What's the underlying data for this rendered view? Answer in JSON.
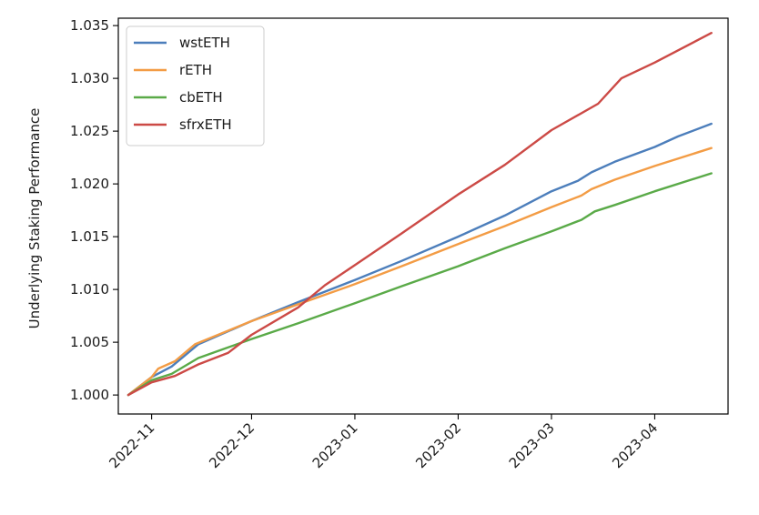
{
  "chart_data": {
    "type": "line",
    "title": "",
    "xlabel": "",
    "ylabel": "Underlying Staking Performance",
    "xlim": [
      "2022-10-22",
      "2023-04-23"
    ],
    "ylim": [
      0.9982,
      1.0357
    ],
    "x_ticks": [
      "2022-11",
      "2022-12",
      "2023-01",
      "2023-02",
      "2023-03",
      "2023-04"
    ],
    "x_tick_dates": [
      "2022-11-01",
      "2022-12-01",
      "2023-01-01",
      "2023-02-01",
      "2023-03-01",
      "2023-04-01"
    ],
    "y_ticks": [
      "1.000",
      "1.005",
      "1.010",
      "1.015",
      "1.020",
      "1.025",
      "1.030",
      "1.035"
    ],
    "y_tick_values": [
      1.0,
      1.005,
      1.01,
      1.015,
      1.02,
      1.025,
      1.03,
      1.035
    ],
    "grid": false,
    "legend_position": "top-left",
    "series": [
      {
        "name": "wstETH",
        "color": "#4c7ebb",
        "points": [
          [
            "2022-10-25",
            1.0
          ],
          [
            "2022-11-01",
            1.0017
          ],
          [
            "2022-11-07",
            1.0027
          ],
          [
            "2022-11-15",
            1.0048
          ],
          [
            "2022-12-01",
            1.007
          ],
          [
            "2022-12-15",
            1.0088
          ],
          [
            "2023-01-01",
            1.0109
          ],
          [
            "2023-01-15",
            1.0127
          ],
          [
            "2023-02-01",
            1.015
          ],
          [
            "2023-02-15",
            1.017
          ],
          [
            "2023-03-01",
            1.0193
          ],
          [
            "2023-03-09",
            1.0203
          ],
          [
            "2023-03-13",
            1.0211
          ],
          [
            "2023-03-20",
            1.0221
          ],
          [
            "2023-04-01",
            1.0235
          ],
          [
            "2023-04-08",
            1.0245
          ],
          [
            "2023-04-18",
            1.0257
          ]
        ]
      },
      {
        "name": "rETH",
        "color": "#f39c45",
        "points": [
          [
            "2022-10-25",
            1.0
          ],
          [
            "2022-11-01",
            1.0017
          ],
          [
            "2022-11-03",
            1.0025
          ],
          [
            "2022-11-08",
            1.0032
          ],
          [
            "2022-11-14",
            1.0048
          ],
          [
            "2022-12-01",
            1.007
          ],
          [
            "2022-12-15",
            1.0086
          ],
          [
            "2023-01-01",
            1.0105
          ],
          [
            "2023-01-15",
            1.0122
          ],
          [
            "2023-02-01",
            1.0143
          ],
          [
            "2023-02-15",
            1.016
          ],
          [
            "2023-03-01",
            1.0178
          ],
          [
            "2023-03-10",
            1.0189
          ],
          [
            "2023-03-13",
            1.0195
          ],
          [
            "2023-03-20",
            1.0204
          ],
          [
            "2023-04-01",
            1.0217
          ],
          [
            "2023-04-18",
            1.0234
          ]
        ]
      },
      {
        "name": "cbETH",
        "color": "#5aaa48",
        "points": [
          [
            "2022-10-25",
            1.0
          ],
          [
            "2022-11-01",
            1.0014
          ],
          [
            "2022-11-07",
            1.002
          ],
          [
            "2022-11-15",
            1.0035
          ],
          [
            "2022-12-01",
            1.0053
          ],
          [
            "2022-12-15",
            1.0068
          ],
          [
            "2023-01-01",
            1.0087
          ],
          [
            "2023-01-15",
            1.0103
          ],
          [
            "2023-02-01",
            1.0122
          ],
          [
            "2023-02-15",
            1.0139
          ],
          [
            "2023-03-01",
            1.0155
          ],
          [
            "2023-03-10",
            1.0166
          ],
          [
            "2023-03-14",
            1.0174
          ],
          [
            "2023-03-20",
            1.018
          ],
          [
            "2023-04-01",
            1.0193
          ],
          [
            "2023-04-18",
            1.021
          ]
        ]
      },
      {
        "name": "sfrxETH",
        "color": "#cc4a46",
        "points": [
          [
            "2022-10-25",
            1.0
          ],
          [
            "2022-11-01",
            1.0012
          ],
          [
            "2022-11-08",
            1.0018
          ],
          [
            "2022-11-15",
            1.0029
          ],
          [
            "2022-11-24",
            1.004
          ],
          [
            "2022-12-01",
            1.0057
          ],
          [
            "2022-12-15",
            1.0083
          ],
          [
            "2022-12-23",
            1.0104
          ],
          [
            "2023-01-01",
            1.0123
          ],
          [
            "2023-01-15",
            1.0153
          ],
          [
            "2023-02-01",
            1.019
          ],
          [
            "2023-02-15",
            1.0218
          ],
          [
            "2023-03-01",
            1.0251
          ],
          [
            "2023-03-15",
            1.0276
          ],
          [
            "2023-03-22",
            1.03
          ],
          [
            "2023-04-01",
            1.0315
          ],
          [
            "2023-04-18",
            1.0343
          ]
        ]
      }
    ]
  }
}
